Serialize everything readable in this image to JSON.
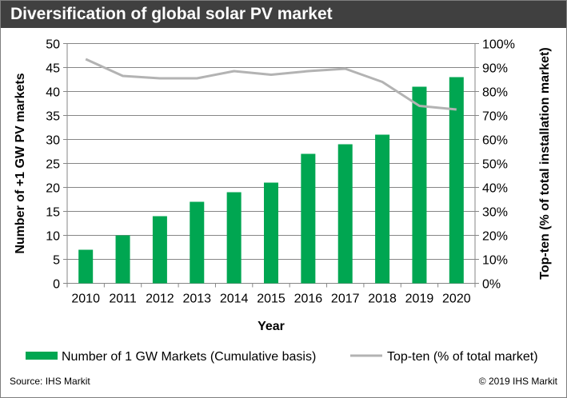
{
  "chart_data": {
    "type": "bar+line",
    "title": "Diversification of global solar PV market",
    "categories": [
      "2010",
      "2011",
      "2012",
      "2013",
      "2014",
      "2015",
      "2016",
      "2017",
      "2018",
      "2019",
      "2020"
    ],
    "series": [
      {
        "name": "Number of 1 GW Markets (Cumulative basis)",
        "type": "bar",
        "axis": "left",
        "color": "#00a651",
        "values": [
          7,
          10,
          14,
          17,
          19,
          21,
          27,
          29,
          31,
          41,
          43
        ]
      },
      {
        "name": "Top-ten (% of total market)",
        "type": "line",
        "axis": "right",
        "color": "#b3b3b3",
        "values": [
          93.5,
          86.5,
          85.5,
          85.5,
          88.5,
          87,
          88.5,
          89.5,
          84,
          74,
          72.5
        ]
      }
    ],
    "xlabel": "Year",
    "ylabel": "Number of +1 GW PV markets",
    "y2label": "Top-ten (% of total installation  market)",
    "ylim": [
      0,
      50
    ],
    "yticks": [
      "0",
      "5",
      "10",
      "15",
      "20",
      "25",
      "30",
      "35",
      "40",
      "45",
      "50"
    ],
    "y2lim": [
      0,
      100
    ],
    "y2ticks": [
      "0%",
      "10%",
      "20%",
      "30%",
      "40%",
      "50%",
      "60%",
      "70%",
      "80%",
      "90%",
      "100%"
    ],
    "grid": true,
    "legend": "bottom"
  },
  "footer": {
    "source": "Source: IHS Markit",
    "copyright": "© 2019 IHS Markit"
  }
}
